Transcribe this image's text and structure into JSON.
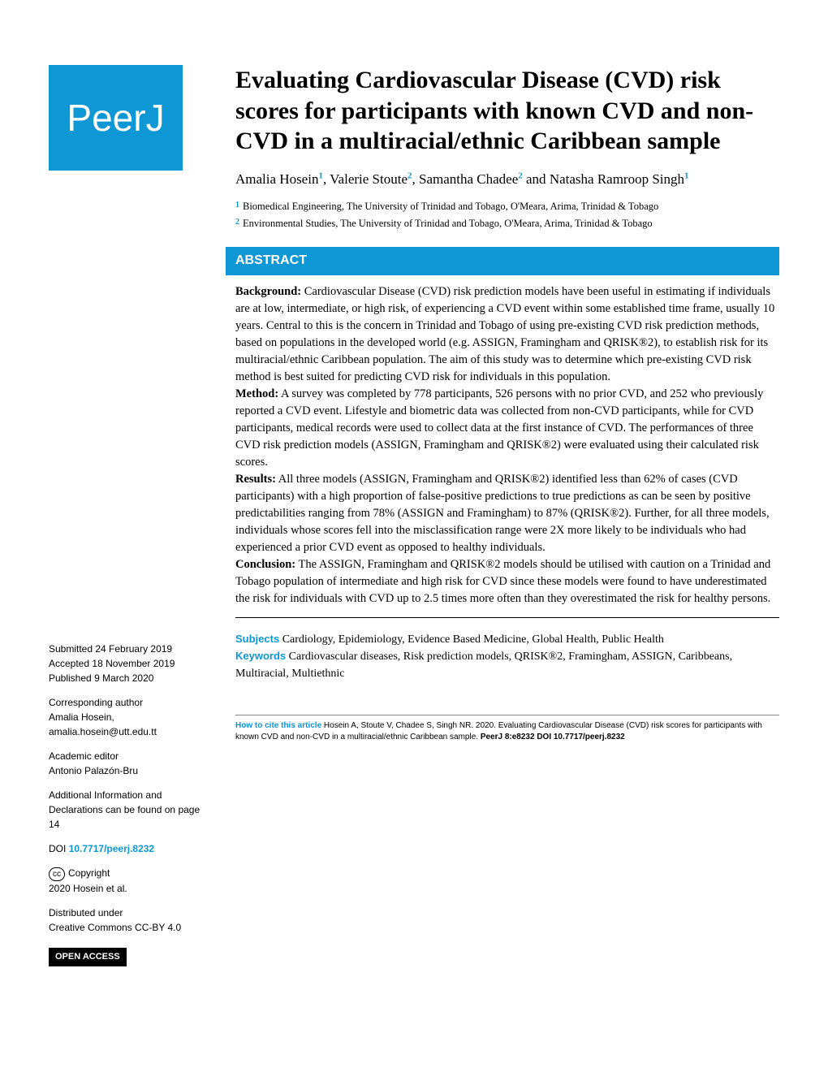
{
  "logo_text": "PeerJ",
  "title": "Evaluating Cardiovascular Disease (CVD) risk scores for participants with known CVD and non-CVD in a multiracial/ethnic Caribbean sample",
  "authors": {
    "list": [
      {
        "name": "Amalia Hosein",
        "aff": "1"
      },
      {
        "name": "Valerie Stoute",
        "aff": "2"
      },
      {
        "name": "Samantha Chadee",
        "aff": "2"
      },
      {
        "name": "Natasha Ramroop Singh",
        "aff": "1"
      }
    ]
  },
  "affiliations": [
    {
      "num": "1",
      "text": "Biomedical Engineering, The University of Trinidad and Tobago, O'Meara, Arima, Trinidad & Tobago"
    },
    {
      "num": "2",
      "text": "Environmental Studies, The University of Trinidad and Tobago, O'Meara, Arima, Trinidad & Tobago"
    }
  ],
  "abstract_header": "ABSTRACT",
  "abstract_sections": {
    "background_label": "Background:",
    "background_text": " Cardiovascular Disease (CVD) risk prediction models have been useful in estimating if individuals are at low, intermediate, or high risk, of experiencing a CVD event within some established time frame, usually 10 years. Central to this is the concern in Trinidad and Tobago of using pre-existing CVD risk prediction methods, based on populations in the developed world (e.g. ASSIGN, Framingham and QRISK®2), to establish risk for its multiracial/ethnic Caribbean population. The aim of this study was to determine which pre-existing CVD risk method is best suited for predicting CVD risk for individuals in this population.",
    "method_label": "Method:",
    "method_text": " A survey was completed by 778 participants, 526 persons with no prior CVD, and 252 who previously reported a CVD event. Lifestyle and biometric data was collected from non-CVD participants, while for CVD participants, medical records were used to collect data at the first instance of CVD. The performances of three CVD risk prediction models (ASSIGN, Framingham and QRISK®2) were evaluated using their calculated risk scores.",
    "results_label": "Results:",
    "results_text": " All three models (ASSIGN, Framingham and QRISK®2) identified less than 62% of cases (CVD participants) with a high proportion of false-positive predictions to true predictions as can be seen by positive predictabilities ranging from 78% (ASSIGN and Framingham) to 87% (QRISK®2). Further, for all three models, individuals whose scores fell into the misclassification range were 2X more likely to be individuals who had experienced a prior CVD event as opposed to healthy individuals.",
    "conclusion_label": "Conclusion:",
    "conclusion_text": " The ASSIGN, Framingham and QRISK®2 models should be utilised with caution on a Trinidad and Tobago population of intermediate and high risk for CVD since these models were found to have underestimated the risk for individuals with CVD up to 2.5 times more often than they overestimated the risk for healthy persons."
  },
  "subjects_label": "Subjects",
  "subjects_text": " Cardiology, Epidemiology, Evidence Based Medicine, Global Health, Public Health",
  "keywords_label": "Keywords",
  "keywords_text": " Cardiovascular diseases, Risk prediction models, QRISK®2, Framingham, ASSIGN, Caribbeans, Multiracial, Multiethnic",
  "sidebar": {
    "submitted_label": "Submitted",
    "submitted_date": "24 February 2019",
    "accepted_label": "Accepted",
    "accepted_date": "18 November 2019",
    "published_label": "Published",
    "published_date": "9 March 2020",
    "corr_author_label": "Corresponding author",
    "corr_author_name": "Amalia Hosein,",
    "corr_author_email": "amalia.hosein@utt.edu.tt",
    "academic_editor_label": "Academic editor",
    "academic_editor_name": "Antonio Palazón-Bru",
    "additional_info": "Additional Information and Declarations can be found on page 14",
    "doi_label": "DOI",
    "doi_value": "10.7717/peerj.8232",
    "copyright_label": "Copyright",
    "copyright_text": "2020 Hosein et al.",
    "distributed_label": "Distributed under",
    "distributed_text": "Creative Commons CC-BY 4.0",
    "open_access_label": "OPEN ACCESS"
  },
  "footer": {
    "cite_label": "How to cite this article",
    "cite_text": " Hosein A, Stoute V, Chadee S, Singh NR. 2020. Evaluating Cardiovascular Disease (CVD) risk scores for participants with known CVD and non-CVD in a multiracial/ethnic Caribbean sample. ",
    "cite_journal": "PeerJ 8:e8232 DOI 10.7717/peerj.8232"
  },
  "colors": {
    "accent": "#0d97d5",
    "text": "#000000",
    "background": "#ffffff"
  }
}
